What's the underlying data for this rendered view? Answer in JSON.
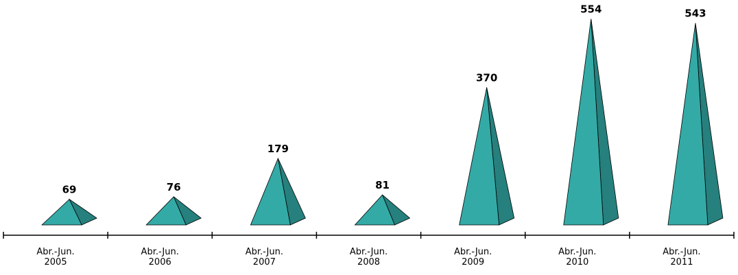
{
  "chart_data": {
    "type": "pyramid",
    "categories": [
      "Abr.-Jun. 2005",
      "Abr.-Jun. 2006",
      "Abr.-Jun. 2007",
      "Abr.-Jun. 2008",
      "Abr.-Jun. 2009",
      "Abr.-Jun. 2010",
      "Abr.-Jun. 2011"
    ],
    "values": [
      69,
      76,
      179,
      81,
      370,
      554,
      543
    ],
    "color": "#34aaa6",
    "side_color": "#26807d"
  }
}
